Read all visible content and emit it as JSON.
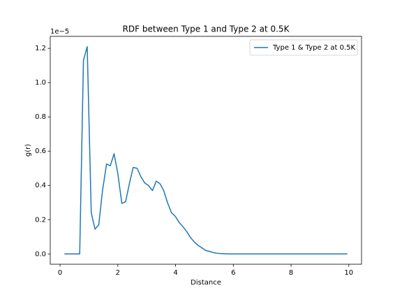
{
  "chart_data": {
    "type": "line",
    "title": "RDF between Type 1 and Type 2 at 0.5K",
    "x_label": "Distance",
    "y_label": "g(r)",
    "y_offset_label": "1e−5",
    "x": [
      0.15,
      0.28,
      0.41,
      0.55,
      0.68,
      0.81,
      0.94,
      1.08,
      1.21,
      1.34,
      1.47,
      1.61,
      1.74,
      1.87,
      2.0,
      2.14,
      2.27,
      2.4,
      2.53,
      2.67,
      2.8,
      2.93,
      3.06,
      3.2,
      3.33,
      3.46,
      3.59,
      3.72,
      3.86,
      3.99,
      4.12,
      4.25,
      4.39,
      4.52,
      4.65,
      4.78,
      4.92,
      5.05,
      5.18,
      5.31,
      5.45,
      5.58,
      5.71,
      5.84,
      5.98,
      6.11,
      6.24,
      6.37,
      6.51,
      6.64,
      6.77,
      6.9,
      7.04,
      7.17,
      7.3,
      7.43,
      7.57,
      7.7,
      7.83,
      7.96,
      8.1,
      8.23,
      8.36,
      8.49,
      8.63,
      8.76,
      8.89,
      9.02,
      9.16,
      9.29,
      9.42,
      9.55,
      9.69,
      9.82,
      9.95
    ],
    "series": [
      {
        "name": "Type 1 & Type 2 at 0.5K",
        "color": "#1f77b4",
        "values": [
          0,
          0,
          0,
          0,
          0,
          1.13,
          1.21,
          0.24,
          0.145,
          0.17,
          0.37,
          0.525,
          0.515,
          0.585,
          0.47,
          0.295,
          0.305,
          0.41,
          0.505,
          0.5,
          0.45,
          0.415,
          0.4,
          0.37,
          0.425,
          0.41,
          0.37,
          0.3,
          0.24,
          0.22,
          0.185,
          0.16,
          0.13,
          0.095,
          0.07,
          0.05,
          0.035,
          0.02,
          0.015,
          0.008,
          0.004,
          0.002,
          0.001,
          0,
          0,
          0,
          0,
          0,
          0,
          0,
          0,
          0,
          0,
          0,
          0,
          0,
          0,
          0,
          0,
          0,
          0,
          0,
          0,
          0,
          0,
          0,
          0,
          0,
          0,
          0,
          0,
          0,
          0,
          0,
          0
        ]
      }
    ],
    "xlim": [
      -0.34,
      10.44
    ],
    "ylim": [
      -0.06,
      1.27
    ],
    "xticks": [
      0,
      2,
      4,
      6,
      8,
      10
    ],
    "yticks": [
      {
        "value": 0,
        "label": "0.0"
      },
      0.2,
      0.4,
      0.6,
      0.8,
      {
        "value": 1,
        "label": "1.0"
      },
      1.2
    ],
    "legend": "upper right",
    "grid": false
  }
}
